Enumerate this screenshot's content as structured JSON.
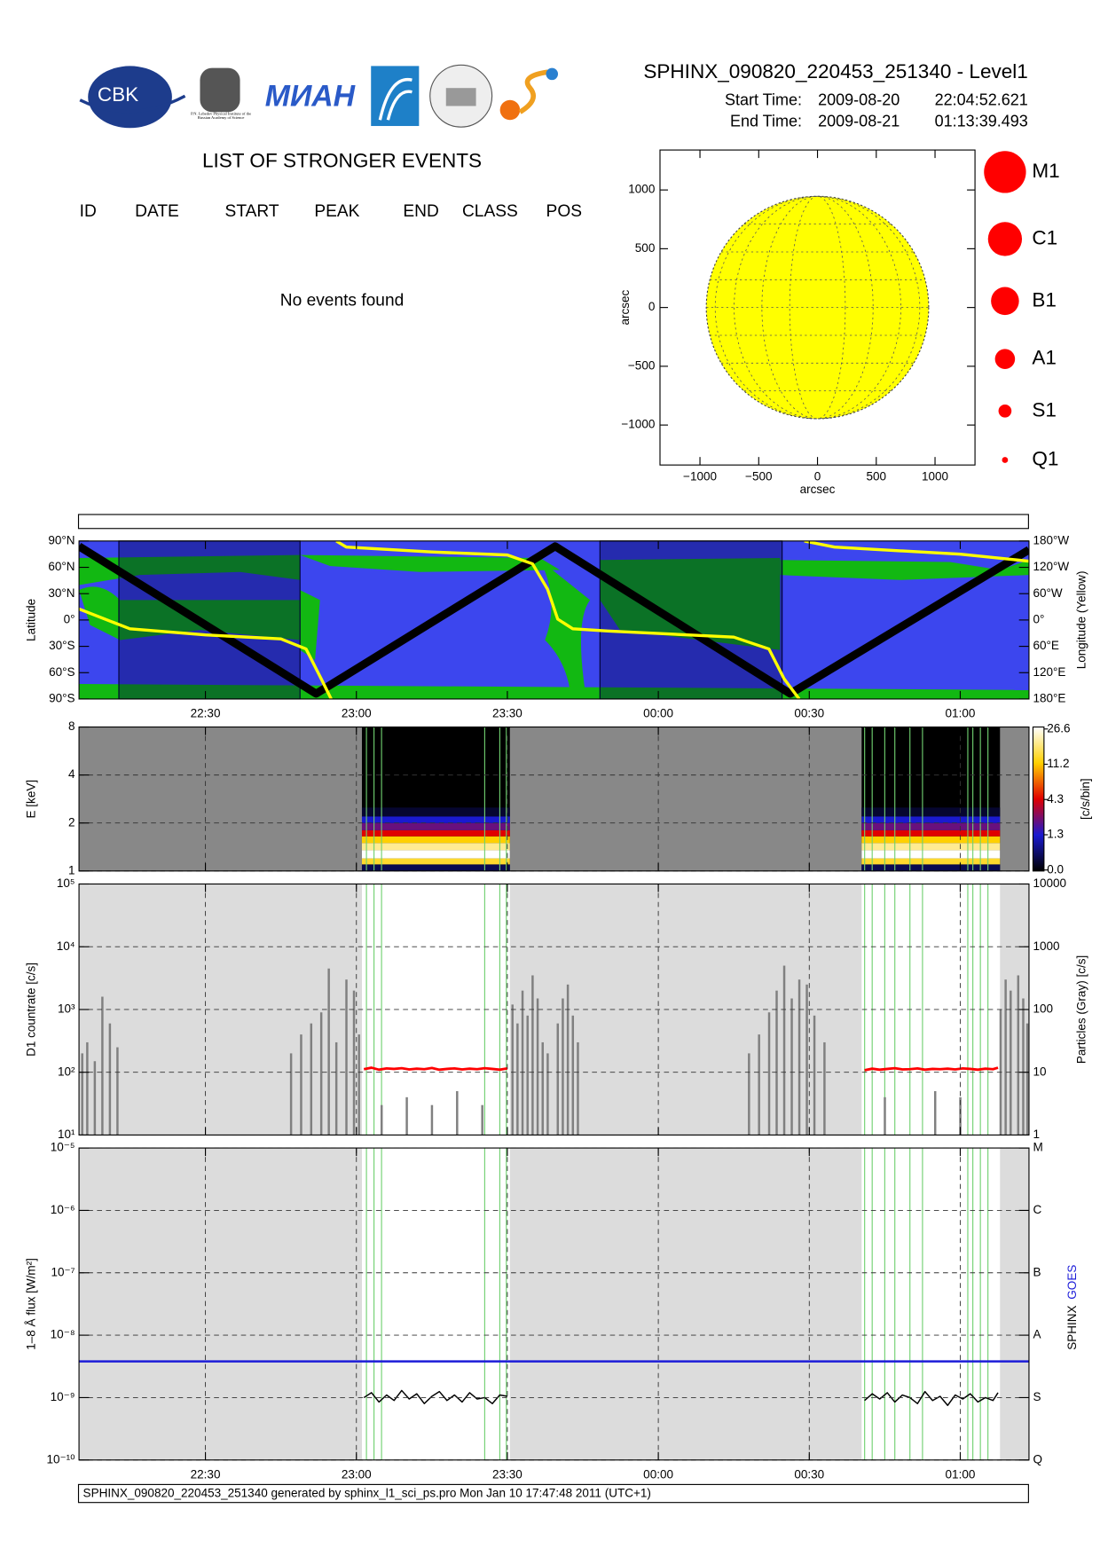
{
  "header": {
    "title": "SPHINX_090820_220453_251340 - Level1",
    "start_label": "Start Time:",
    "start_date": "2009-08-20",
    "start_time": "22:04:52.621",
    "end_label": "End Time:",
    "end_date": "2009-08-21",
    "end_time": "01:13:39.493"
  },
  "logos": {
    "cbk": "CBK",
    "lebedev": "P.N. Lebedev Physical Institute of the Russian Academy of Science",
    "mian": "МИАН"
  },
  "events": {
    "title": "LIST OF STRONGER EVENTS",
    "columns": [
      "ID",
      "DATE",
      "START",
      "PEAK",
      "END",
      "CLASS",
      "POS"
    ],
    "message": "No events found"
  },
  "footer": "SPHINX_090820_220453_251340 generated by sphinx_l1_sci_ps.pro Mon Jan 10 17:47:48 2011 (UTC+1)",
  "chart_data": [
    {
      "type": "sun-map",
      "xlabel": "arcsec",
      "ylabel": "arcsec",
      "xlim": [
        -1340,
        1340
      ],
      "ylim": [
        -1340,
        1340
      ],
      "xticks": [
        {
          "value": -1000,
          "label": "−1000"
        },
        {
          "value": -500,
          "label": "−500"
        },
        0,
        500,
        1000
      ],
      "yticks": [
        {
          "value": -1000,
          "label": "−1000"
        },
        {
          "value": -500,
          "label": "−500"
        },
        0,
        500,
        1000
      ],
      "sun_radius": 946,
      "sun_color": "#ffff00",
      "legend": [
        "M1",
        "C1",
        "B1",
        "A1",
        "S1",
        "Q1"
      ],
      "legend_color": "#ff0000"
    },
    {
      "type": "orbit",
      "ylabel": "Latitude",
      "y2label": "Longitude (Yellow)",
      "xlim": [
        1324.88,
        1513.66
      ],
      "xticks": [
        {
          "value": 1350,
          "label": "22:30"
        },
        {
          "value": 1380,
          "label": "23:00"
        },
        {
          "value": 1410,
          "label": "23:30"
        },
        {
          "value": 1440,
          "label": "00:00"
        },
        {
          "value": 1470,
          "label": "00:30"
        },
        {
          "value": 1500,
          "label": "01:00"
        }
      ],
      "ylim": [
        -90,
        90
      ],
      "yticks": [
        {
          "value": 90,
          "label": "90°N"
        },
        {
          "value": 60,
          "label": "60°N"
        },
        {
          "value": 30,
          "label": "30°N"
        },
        {
          "value": 0,
          "label": "0°"
        },
        {
          "value": -30,
          "label": "30°S"
        },
        {
          "value": -60,
          "label": "60°S"
        },
        {
          "value": -90,
          "label": "90°S"
        }
      ],
      "y2lim": [
        -180,
        180
      ],
      "y2ticks": [
        {
          "value": 180,
          "label": "180°W"
        },
        {
          "value": 120,
          "label": "120°W"
        },
        {
          "value": 60,
          "label": "60°W"
        },
        {
          "value": 0,
          "label": "0°"
        },
        {
          "value": -60,
          "label": "60°E"
        },
        {
          "value": -120,
          "label": "120°E"
        },
        {
          "value": -180,
          "label": "180°E"
        }
      ],
      "shaded_intervals": [
        [
          1332.8,
          1368.8
        ],
        [
          1428.4,
          1464.6
        ]
      ],
      "series": [
        {
          "color": "#000000",
          "x": [
            1324.88,
            1372,
            1419.5,
            1466.2,
            1513.66
          ],
          "values": [
            84,
            -84,
            84,
            -84,
            80
          ]
        },
        {
          "color": "#ffff00",
          "axis": "y2",
          "x": [
            1324.88,
            1335,
            1350,
            1365,
            1370,
            1373,
            1375,
            1375.5,
            1376,
            1378,
            1395,
            1410,
            1415,
            1418,
            1420,
            1423,
            1430,
            1455,
            1462,
            1465,
            1468,
            1468.5,
            1469,
            1475,
            1500,
            1513.66
          ],
          "values": [
            25,
            -20,
            -34,
            -43,
            -66,
            -134,
            -180,
            null,
            180,
            166,
            155,
            148,
            128,
            70,
            2,
            -20,
            -25,
            -39,
            -66,
            -134,
            -180,
            null,
            180,
            166,
            150,
            134
          ]
        }
      ]
    },
    {
      "type": "spectrogram",
      "ylabel": "E [keV]",
      "ylog": true,
      "grid": true,
      "xlim": [
        1324.88,
        1513.66
      ],
      "xticks": [
        1350,
        1380,
        1410,
        1440,
        1470,
        1500
      ],
      "ylim": [
        1,
        8
      ],
      "yticks": [
        1,
        2,
        4,
        8
      ],
      "intervals": [
        [
          1381.1,
          1410.5
        ],
        [
          1480.4,
          1507.9
        ]
      ],
      "energy_bins": [
        1.0,
        1.1,
        1.2,
        1.35,
        1.5,
        1.65,
        1.8,
        2.0,
        2.2,
        2.5
      ],
      "counts": [
        0.5,
        14,
        26.6,
        20,
        11.2,
        4.3,
        2.5,
        1.3,
        0.3
      ],
      "colorbar_label": "[c/s/bin]",
      "colorbar_ticks": [
        {
          "value": 0,
          "label": "0.0"
        },
        1.3,
        4.3,
        11.2,
        26.6
      ],
      "colormap": [
        "#000000",
        "#1a1ad0",
        "#e00000",
        "#ffd000",
        "#ffffff"
      ],
      "green_lines": [
        1382,
        1383.5,
        1385,
        1405.5,
        1408.5,
        1409.8,
        1481,
        1482.5,
        1485,
        1487,
        1490,
        1492.5,
        1501.5,
        1502.5,
        1504,
        1505.5
      ]
    },
    {
      "type": "countrate",
      "ylabel": "D1 countrate [c/s]",
      "y2label": "Particles (Gray) [c/s]",
      "ylog": true,
      "y2log": true,
      "grid": true,
      "xlim": [
        1324.88,
        1513.66
      ],
      "xticks": [
        1350,
        1380,
        1410,
        1440,
        1470,
        1500
      ],
      "ylim": [
        10,
        100000
      ],
      "yticks": [
        {
          "value": 10,
          "label": "10¹"
        },
        {
          "value": 100,
          "label": "10²"
        },
        {
          "value": 1000,
          "label": "10³"
        },
        {
          "value": 10000,
          "label": "10⁴"
        },
        {
          "value": 100000,
          "label": "10⁵"
        }
      ],
      "y2lim": [
        1,
        10000
      ],
      "y2ticks": [
        1,
        10,
        100,
        1000,
        10000
      ],
      "intervals": [
        [
          1381.1,
          1410.5
        ],
        [
          1480.4,
          1507.9
        ]
      ],
      "green_lines": [
        1382,
        1383.5,
        1385,
        1405.5,
        1408.5,
        1409.8,
        1481,
        1482.5,
        1485,
        1487,
        1490,
        1492.5,
        1501.5,
        1502.5,
        1504,
        1505.5
      ],
      "series": [
        {
          "color": "#ff0000",
          "x": [
            1381.5,
            1383,
            1384.5,
            1386,
            1387.5,
            1389,
            1390.5,
            1392,
            1393.5,
            1395,
            1396.5,
            1398,
            1399.5,
            1401,
            1402.5,
            1404,
            1405.5,
            1407,
            1408.5,
            1410,
            1445,
            1481,
            1482.5,
            1484,
            1485.5,
            1487,
            1488.5,
            1490,
            1491.5,
            1493,
            1494.5,
            1496,
            1497.5,
            1499,
            1500.5,
            1502,
            1503.5,
            1505,
            1506.5,
            1507.5
          ],
          "values": [
            112,
            118,
            110,
            115,
            113,
            116,
            111,
            114,
            112,
            117,
            110,
            113,
            115,
            111,
            114,
            112,
            116,
            113,
            110,
            115,
            null,
            108,
            114,
            110,
            113,
            116,
            111,
            112,
            115,
            110,
            113,
            112,
            114,
            111,
            115,
            113,
            110,
            114,
            112,
            118
          ]
        },
        {
          "color": "#808080",
          "axis": "y2",
          "x": [
            1325.5,
            1326.5,
            1328,
            1329.5,
            1331,
            1332.5,
            1367,
            1369,
            1371,
            1373,
            1374.5,
            1376,
            1378,
            1379.5,
            1380.5,
            1385,
            1390,
            1395,
            1400,
            1405,
            1411,
            1412,
            1413,
            1414,
            1415,
            1416,
            1417,
            1418,
            1420,
            1421,
            1422,
            1423,
            1424,
            1458,
            1460,
            1462,
            1463.5,
            1465,
            1466.5,
            1468,
            1469.5,
            1471,
            1473,
            1485,
            1495,
            1500,
            1508,
            1509,
            1510,
            1511.5,
            1512.5,
            1513.3
          ],
          "values": [
            20,
            30,
            15,
            160,
            60,
            25,
            20,
            40,
            60,
            90,
            450,
            30,
            300,
            200,
            40,
            3,
            4,
            3,
            5,
            3,
            120,
            60,
            200,
            80,
            350,
            150,
            30,
            20,
            60,
            150,
            250,
            80,
            30,
            20,
            40,
            90,
            200,
            500,
            150,
            300,
            250,
            80,
            30,
            4,
            5,
            4,
            100,
            300,
            200,
            350,
            150,
            60
          ]
        }
      ]
    },
    {
      "type": "flux",
      "ylabel": "1–8 Å flux [W/m²]",
      "ylog": true,
      "grid": true,
      "xlim": [
        1324.88,
        1513.66
      ],
      "xticks": [
        {
          "value": 1350,
          "label": "22:30"
        },
        {
          "value": 1380,
          "label": "23:00"
        },
        {
          "value": 1410,
          "label": "23:30"
        },
        {
          "value": 1440,
          "label": "00:00"
        },
        {
          "value": 1470,
          "label": "00:30"
        },
        {
          "value": 1500,
          "label": "01:00"
        }
      ],
      "ylim": [
        1e-10,
        1e-05
      ],
      "yticks": [
        {
          "value": 1e-10,
          "label": "10⁻¹⁰"
        },
        {
          "value": 1e-09,
          "label": "10⁻⁹"
        },
        {
          "value": 1e-08,
          "label": "10⁻⁸"
        },
        {
          "value": 1e-07,
          "label": "10⁻⁷"
        },
        {
          "value": 1e-06,
          "label": "10⁻⁶"
        },
        {
          "value": 1e-05,
          "label": "10⁻⁵"
        }
      ],
      "y2ticks": [
        {
          "value": 1e-10,
          "label": "Q"
        },
        {
          "value": 1e-09,
          "label": "S"
        },
        {
          "value": 1e-08,
          "label": "A"
        },
        {
          "value": 1e-07,
          "label": "B"
        },
        {
          "value": 1e-06,
          "label": "C"
        },
        {
          "value": 1e-05,
          "label": "M"
        }
      ],
      "intervals": [
        [
          1381.1,
          1410.5
        ],
        [
          1480.4,
          1507.9
        ]
      ],
      "green_lines": [
        1382,
        1383.5,
        1385,
        1405.5,
        1408.5,
        1409.8,
        1481,
        1482.5,
        1485,
        1487,
        1490,
        1492.5,
        1501.5,
        1502.5,
        1504,
        1505.5
      ],
      "series": [
        {
          "name": "SPHINX",
          "color": "#000000",
          "x": [
            1381.5,
            1383,
            1384.5,
            1386,
            1387.5,
            1389,
            1390.5,
            1392,
            1393.5,
            1395,
            1396.5,
            1398,
            1399.5,
            1401,
            1402.5,
            1404,
            1405.5,
            1407,
            1408.5,
            1410,
            1445,
            1481,
            1482.5,
            1484,
            1485.5,
            1487,
            1488.5,
            1490,
            1491.5,
            1493,
            1494.5,
            1496,
            1497.5,
            1499,
            1500.5,
            1502,
            1503.5,
            1505,
            1506.5,
            1507.5
          ],
          "values": [
            1e-09,
            1.2e-09,
            8.5e-10,
            1.1e-09,
            9e-10,
            1.3e-09,
            9.5e-10,
            1.15e-09,
            8e-10,
            1.05e-09,
            1.25e-09,
            9e-10,
            1.1e-09,
            8.5e-10,
            1.2e-09,
            9.5e-10,
            1e-09,
            8e-10,
            1.1e-09,
            1.05e-09,
            null,
            9e-10,
            1.15e-09,
            9.5e-10,
            1.2e-09,
            8.5e-10,
            1.1e-09,
            1e-09,
            8e-10,
            1.25e-09,
            9e-10,
            1.05e-09,
            7.5e-10,
            1.1e-09,
            9.5e-10,
            1.15e-09,
            8.5e-10,
            1e-09,
            9e-10,
            1.2e-09
          ]
        },
        {
          "name": "GOES",
          "color": "#1c1cd8",
          "x": [
            1324.88,
            1513.66
          ],
          "values": [
            3.8e-09,
            3.8e-09
          ]
        }
      ]
    }
  ]
}
